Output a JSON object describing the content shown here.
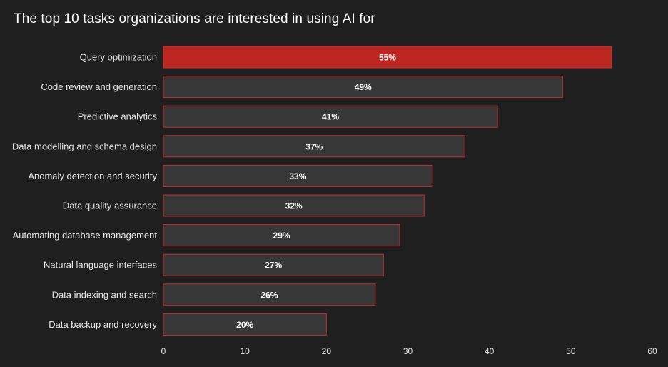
{
  "chart_data": {
    "type": "bar",
    "orientation": "horizontal",
    "title": "The top 10 tasks organizations are interested in using AI for",
    "categories": [
      "Query optimization",
      "Code review and generation",
      "Predictive analytics",
      "Data modelling and schema design",
      "Anomaly detection and security",
      "Data quality assurance",
      "Automating database management",
      "Natural language interfaces",
      "Data indexing and search",
      "Data backup and recovery"
    ],
    "values": [
      55,
      49,
      41,
      37,
      33,
      32,
      29,
      27,
      26,
      20
    ],
    "value_labels": [
      "55%",
      "49%",
      "41%",
      "37%",
      "33%",
      "32%",
      "29%",
      "27%",
      "26%",
      "20%"
    ],
    "xlim": [
      0,
      60
    ],
    "xticks": [
      0,
      10,
      20,
      30,
      40,
      50,
      60
    ],
    "xlabel": "",
    "ylabel": "",
    "grid": false,
    "colors": {
      "background": "#1f1f1f",
      "highlight_fill": "#bb2720",
      "bar_fill": "#373737",
      "bar_stroke": "#c4302a"
    }
  }
}
